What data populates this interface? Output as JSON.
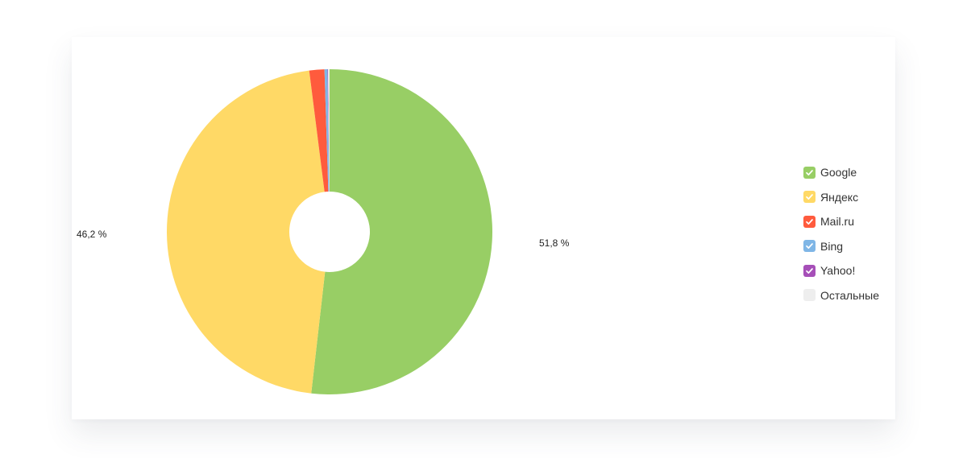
{
  "chart_data": {
    "type": "pie",
    "title": "",
    "series": [
      {
        "name": "Google",
        "value": 51.8,
        "color": "#98ce65",
        "label": "51,8 %"
      },
      {
        "name": "Яндекс",
        "value": 46.2,
        "color": "#ffd966",
        "label": "46,2 %"
      },
      {
        "name": "Mail.ru",
        "value": 1.5,
        "color": "#ff5b3d",
        "label": ""
      },
      {
        "name": "Bing",
        "value": 0.3,
        "color": "#7fb6e6",
        "label": ""
      },
      {
        "name": "Yahoo!",
        "value": 0.05,
        "color": "#a64fb8",
        "label": ""
      },
      {
        "name": "Остальные",
        "value": 0.15,
        "color": "#eeeeee",
        "label": ""
      }
    ],
    "legend": {
      "position": "right",
      "items": [
        {
          "label": "Google",
          "checked": true
        },
        {
          "label": "Яндекс",
          "checked": true
        },
        {
          "label": "Mail.ru",
          "checked": true
        },
        {
          "label": "Bing",
          "checked": true
        },
        {
          "label": "Yahoo!",
          "checked": true
        },
        {
          "label": "Остальные",
          "checked": false
        }
      ]
    },
    "start_angle_deg": 0,
    "direction": "clockwise"
  }
}
